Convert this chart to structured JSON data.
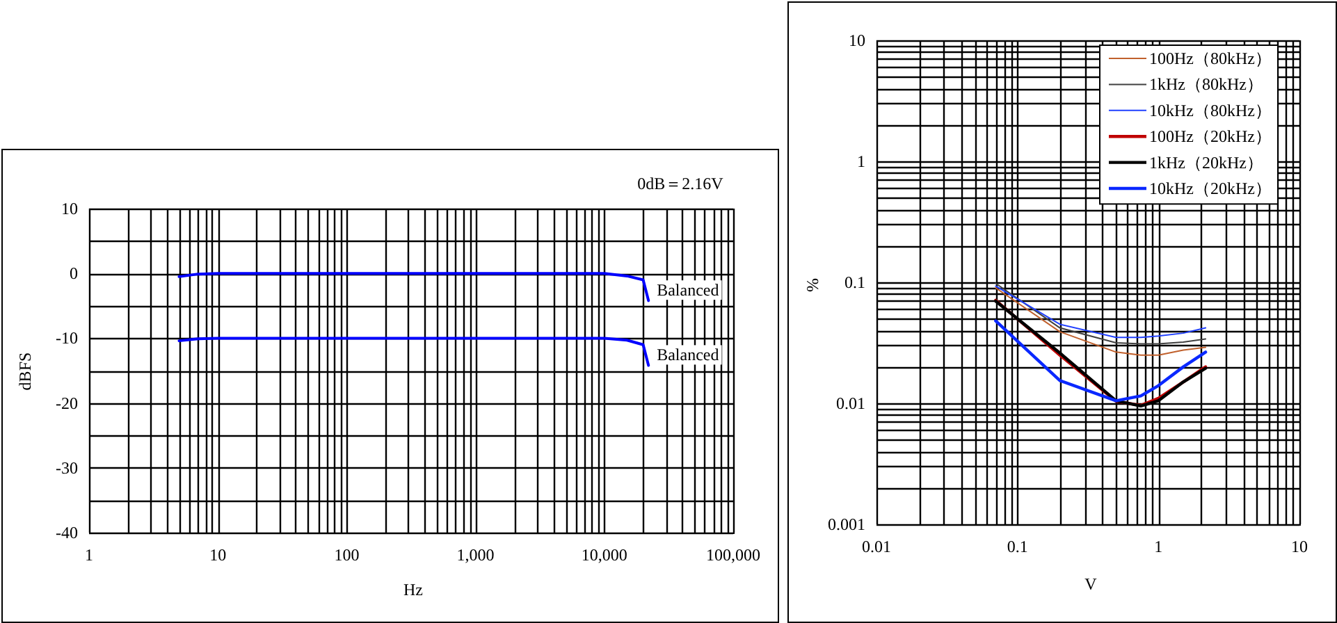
{
  "chart_data": [
    {
      "type": "line",
      "xlabel": "Hz",
      "ylabel": "dBFS",
      "log": "x",
      "grid": true,
      "legend": false,
      "line_style": "solid",
      "annotations": [
        "0dB＝2.16V"
      ],
      "xlim": [
        1,
        100000
      ],
      "ylim": [
        -40,
        10
      ],
      "xticks": [
        1,
        10,
        100,
        {
          "value": 1000,
          "label": "1,000"
        },
        {
          "value": 10000,
          "label": "10,000"
        },
        {
          "value": 100000,
          "label": "100,000"
        }
      ],
      "yticks": [
        -40,
        {
          "value": -35,
          "label": null
        },
        -30,
        {
          "value": -25,
          "label": null
        },
        -20,
        {
          "value": -15,
          "label": null
        },
        -10,
        {
          "value": -5,
          "label": null
        },
        0,
        {
          "value": 5,
          "label": null
        },
        10
      ],
      "x": [
        5,
        7,
        10,
        100,
        1000,
        10000,
        15000,
        20000,
        22000
      ],
      "series": [
        {
          "name": "Balanced",
          "color": "#0000ff",
          "values": [
            -0.5,
            -0.1,
            0,
            0,
            0,
            0,
            -0.4,
            -1,
            -4.2
          ]
        },
        {
          "name": "Balanced",
          "color": "#0000ff",
          "values": [
            -10.4,
            -10.1,
            -10,
            -10,
            -10,
            -10,
            -10.3,
            -11,
            -14.2
          ]
        }
      ]
    },
    {
      "type": "line",
      "xlabel": "V",
      "ylabel": "%",
      "log": "xy",
      "grid": true,
      "legend": "top right",
      "line_style": "solid",
      "xlim": [
        0.01,
        10
      ],
      "ylim": [
        0.001,
        10
      ],
      "xticks": [
        0.01,
        0.1,
        1,
        10
      ],
      "yticks": [
        0.001,
        0.01,
        0.1,
        1,
        10
      ],
      "x": [
        0.07,
        0.2,
        0.5,
        0.75,
        1,
        1.5,
        2.16
      ],
      "series": [
        {
          "name": "100Hz（80kHz）",
          "color": "#c0602c",
          "values": [
            0.09,
            0.039,
            0.0265,
            0.025,
            0.025,
            0.0275,
            0.029
          ]
        },
        {
          "name": "1kHz（80kHz）",
          "color": "#404040",
          "values": [
            0.098,
            0.042,
            0.0316,
            0.031,
            0.031,
            0.032,
            0.034
          ]
        },
        {
          "name": "10kHz（80kHz）",
          "color": "#2040ff",
          "values": [
            0.093,
            0.045,
            0.035,
            0.035,
            0.036,
            0.038,
            0.042
          ]
        },
        {
          "name": "100Hz（20kHz）",
          "color": "#c00000",
          "values": [
            0.071,
            0.025,
            0.0104,
            0.0096,
            0.011,
            0.015,
            0.02
          ]
        },
        {
          "name": "1kHz（20kHz）",
          "color": "#000000",
          "values": [
            0.07,
            0.026,
            0.0105,
            0.0095,
            0.0105,
            0.015,
            0.0195
          ]
        },
        {
          "name": "10kHz（20kHz）",
          "color": "#0a28ff",
          "values": [
            0.048,
            0.0154,
            0.0105,
            0.0115,
            0.014,
            0.02,
            0.0265
          ]
        }
      ]
    }
  ]
}
